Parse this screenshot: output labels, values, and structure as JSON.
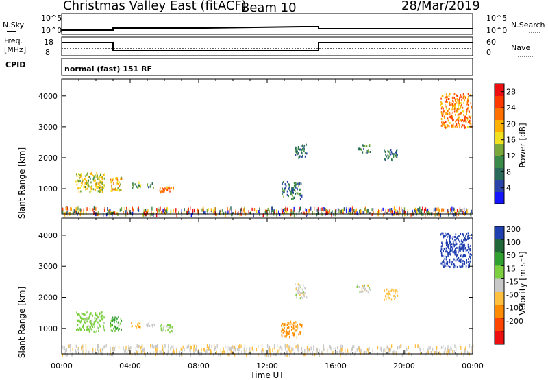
{
  "header": {
    "station": "Christmas Valley East (fitACF)",
    "beam": "Beam 10",
    "date": "28/Mar/2019"
  },
  "nsky_panel": {
    "left_label": "N.Sky",
    "right_label": "N.Search",
    "left_ticks": [
      "10^5",
      "10^0"
    ],
    "right_ticks": [
      "10^5",
      "10^0"
    ]
  },
  "freq_panel": {
    "left_label_line1": "Freq.",
    "left_label_line2": "[MHz]",
    "right_label": "Nave",
    "left_ticks": [
      "18",
      "8"
    ],
    "right_ticks": [
      "60",
      "0"
    ]
  },
  "cpid_panel": {
    "label": "CPID",
    "text": "normal (fast) 151 RF"
  },
  "colors": {
    "power_scale": [
      "#1414ff",
      "#2a44aa",
      "#2a6a5a",
      "#3a8a4a",
      "#7aa83a",
      "#f0e020",
      "#ffb000",
      "#ff7000",
      "#ff3a00",
      "#ee1010"
    ],
    "velocity_scale": [
      "#ee1010",
      "#ff4500",
      "#ff8c00",
      "#ffc040",
      "#c8c8c8",
      "#7cd040",
      "#30a030",
      "#206838",
      "#2040b0"
    ]
  },
  "chart_data": [
    {
      "type": "heatmap",
      "name_role": "power-panel",
      "ylabel": "Slant Range [km]",
      "yticks": [
        1000,
        2000,
        3000,
        4000
      ],
      "ylim": [
        180,
        4550
      ],
      "colorbar_label": "Power [dB]",
      "colorbar_ticks": [
        4,
        8,
        12,
        16,
        20,
        24,
        28
      ],
      "colorbar_range": [
        0,
        30
      ],
      "blobs": [
        {
          "t0": 0.8,
          "t1": 2.5,
          "r0": 900,
          "r1": 1550,
          "level": 16
        },
        {
          "t0": 2.8,
          "t1": 3.5,
          "r0": 950,
          "r1": 1400,
          "level": 18
        },
        {
          "t0": 4.0,
          "t1": 4.6,
          "r0": 1050,
          "r1": 1250,
          "level": 12
        },
        {
          "t0": 4.9,
          "t1": 5.4,
          "r0": 1050,
          "r1": 1200,
          "level": 10
        },
        {
          "t0": 5.7,
          "t1": 6.5,
          "r0": 900,
          "r1": 1150,
          "level": 22
        },
        {
          "t0": 12.8,
          "t1": 14.0,
          "r0": 700,
          "r1": 1250,
          "level": 8
        },
        {
          "t0": 13.6,
          "t1": 14.3,
          "r0": 2000,
          "r1": 2450,
          "level": 8
        },
        {
          "t0": 17.2,
          "t1": 18.0,
          "r0": 2200,
          "r1": 2450,
          "level": 9
        },
        {
          "t0": 18.8,
          "t1": 19.6,
          "r0": 1950,
          "r1": 2300,
          "level": 8
        },
        {
          "t0": 22.1,
          "t1": 23.9,
          "r0": 3000,
          "r1": 4100,
          "level": 22
        }
      ]
    },
    {
      "type": "heatmap",
      "name_role": "velocity-panel",
      "ylabel": "Slant Range [km]",
      "yticks": [
        1000,
        2000,
        3000,
        4000
      ],
      "ylim": [
        180,
        4550
      ],
      "colorbar_label": "Velocity [m s⁻¹]",
      "colorbar_ticks": [
        200,
        100,
        50,
        15,
        -15,
        -50,
        -100,
        -200
      ],
      "xticks": [
        "00:00",
        "04:00",
        "08:00",
        "12:00",
        "16:00",
        "20:00",
        "00:00"
      ],
      "xlabel": "Time UT",
      "xlim": [
        0,
        24
      ],
      "blobs": [
        {
          "t0": 0.8,
          "t1": 2.5,
          "r0": 900,
          "r1": 1550,
          "vel": 30
        },
        {
          "t0": 2.8,
          "t1": 3.5,
          "r0": 950,
          "r1": 1400,
          "vel": 60
        },
        {
          "t0": 4.0,
          "t1": 4.6,
          "r0": 1050,
          "r1": 1250,
          "vel": -40
        },
        {
          "t0": 4.9,
          "t1": 5.4,
          "r0": 1050,
          "r1": 1200,
          "vel": 10
        },
        {
          "t0": 5.7,
          "t1": 6.5,
          "r0": 900,
          "r1": 1150,
          "vel": 30
        },
        {
          "t0": 12.8,
          "t1": 14.0,
          "r0": 700,
          "r1": 1250,
          "vel": -60
        },
        {
          "t0": 13.6,
          "t1": 14.3,
          "r0": 2000,
          "r1": 2450,
          "vel": 0
        },
        {
          "t0": 17.2,
          "t1": 18.0,
          "r0": 2200,
          "r1": 2450,
          "vel": 0
        },
        {
          "t0": 18.8,
          "t1": 19.6,
          "r0": 1950,
          "r1": 2300,
          "vel": -30
        },
        {
          "t0": 22.1,
          "t1": 23.9,
          "r0": 3000,
          "r1": 4100,
          "vel": 220
        }
      ]
    }
  ]
}
